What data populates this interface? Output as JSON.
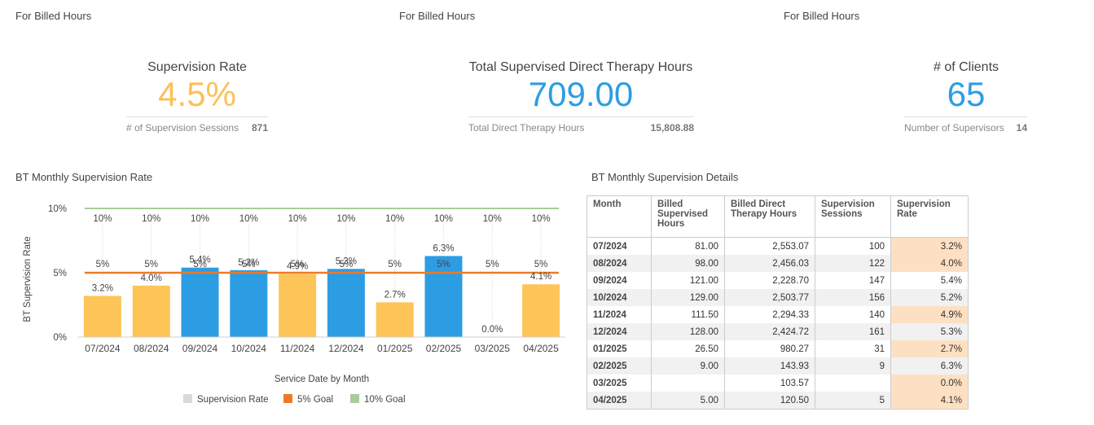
{
  "sections": [
    {
      "label": "For Billed Hours"
    },
    {
      "label": "For Billed Hours"
    },
    {
      "label": "For Billed Hours"
    }
  ],
  "kpis": {
    "supervision_rate": {
      "title": "Supervision Rate",
      "value": "4.5%",
      "color": "#fdc057",
      "foot_label": "# of Supervision Sessions",
      "foot_value": "871"
    },
    "total_hours": {
      "title": "Total Supervised Direct Therapy Hours",
      "value": "709.00",
      "color": "#2d9de3",
      "foot_label": "Total Direct Therapy Hours",
      "foot_value": "15,808.88"
    },
    "clients": {
      "title": "# of Clients",
      "value": "65",
      "color": "#2d9de3",
      "foot_label": "Number of Supervisors",
      "foot_value": "14"
    }
  },
  "chart_title": "BT Monthly Supervision Rate",
  "table_title": "BT Monthly Supervision Details",
  "chart_data": {
    "type": "bar",
    "title": "BT Monthly Supervision Rate",
    "xlabel": "Service Date by Month",
    "ylabel": "BT Supervision Rate",
    "categories": [
      "07/2024",
      "08/2024",
      "09/2024",
      "10/2024",
      "11/2024",
      "12/2024",
      "01/2025",
      "02/2025",
      "03/2025",
      "04/2025"
    ],
    "ylim": [
      0,
      10
    ],
    "yticks": [
      {
        "v": 0,
        "label": "0%"
      },
      {
        "v": 5,
        "label": "5%"
      },
      {
        "v": 10,
        "label": "10%"
      }
    ],
    "series": [
      {
        "name": "Supervision Rate",
        "values": [
          3.2,
          4.0,
          5.4,
          5.2,
          4.9,
          5.3,
          2.7,
          6.3,
          0.0,
          4.1
        ],
        "labels": [
          "3.2%",
          "4.0%",
          "5.4%",
          "5.2%",
          "4.9%",
          "5.3%",
          "2.7%",
          "6.3%",
          "0.0%",
          "4.1%"
        ]
      },
      {
        "name": "5% Goal",
        "values": [
          5,
          5,
          5,
          5,
          5,
          5,
          5,
          5,
          5,
          5
        ],
        "label": "5%"
      },
      {
        "name": "10% Goal",
        "values": [
          10,
          10,
          10,
          10,
          10,
          10,
          10,
          10,
          10,
          10
        ],
        "label": "10%"
      }
    ],
    "legend": [
      {
        "name": "Supervision Rate",
        "color": "#d9d9d9"
      },
      {
        "name": "5% Goal",
        "color": "#ec7a26"
      },
      {
        "name": "10% Goal",
        "color": "#a9cc9a"
      }
    ],
    "colors": {
      "above": "#2d9de3",
      "below": "#fdc557",
      "goal5": "#ec7a26",
      "goal10": "#a9cc9a"
    },
    "legend_position": "bottom",
    "grid": false
  },
  "table": {
    "headers": [
      "Month",
      "Billed Supervised Hours",
      "Billed Direct Therapy Hours",
      "Supervision Sessions",
      "Supervision Rate"
    ],
    "rows": [
      {
        "month": "07/2024",
        "supervised": "81.00",
        "direct": "2,553.07",
        "sessions": "100",
        "rate": "3.2%",
        "highlight": true
      },
      {
        "month": "08/2024",
        "supervised": "98.00",
        "direct": "2,456.03",
        "sessions": "122",
        "rate": "4.0%",
        "highlight": true
      },
      {
        "month": "09/2024",
        "supervised": "121.00",
        "direct": "2,228.70",
        "sessions": "147",
        "rate": "5.4%",
        "highlight": false
      },
      {
        "month": "10/2024",
        "supervised": "129.00",
        "direct": "2,503.77",
        "sessions": "156",
        "rate": "5.2%",
        "highlight": false
      },
      {
        "month": "11/2024",
        "supervised": "111.50",
        "direct": "2,294.33",
        "sessions": "140",
        "rate": "4.9%",
        "highlight": true
      },
      {
        "month": "12/2024",
        "supervised": "128.00",
        "direct": "2,424.72",
        "sessions": "161",
        "rate": "5.3%",
        "highlight": false
      },
      {
        "month": "01/2025",
        "supervised": "26.50",
        "direct": "980.27",
        "sessions": "31",
        "rate": "2.7%",
        "highlight": true
      },
      {
        "month": "02/2025",
        "supervised": "9.00",
        "direct": "143.93",
        "sessions": "9",
        "rate": "6.3%",
        "highlight": false
      },
      {
        "month": "03/2025",
        "supervised": "",
        "direct": "103.57",
        "sessions": "",
        "rate": "0.0%",
        "highlight": true
      },
      {
        "month": "04/2025",
        "supervised": "5.00",
        "direct": "120.50",
        "sessions": "5",
        "rate": "4.1%",
        "highlight": true
      }
    ]
  }
}
